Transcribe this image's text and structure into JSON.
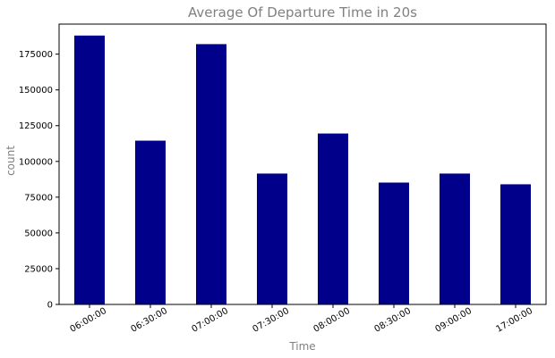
{
  "chart_data": {
    "type": "bar",
    "title": "Average Of Departure Time in 20s",
    "xlabel": "Time",
    "ylabel": "count",
    "categories": [
      "06:00:00",
      "06:30:00",
      "07:00:00",
      "07:30:00",
      "08:00:00",
      "08:30:00",
      "09:00:00",
      "17:00:00"
    ],
    "values": [
      188000,
      114500,
      182000,
      91500,
      119500,
      85200,
      91500,
      84000
    ],
    "ylim": [
      0,
      196000
    ],
    "yticks": [
      0,
      25000,
      50000,
      75000,
      100000,
      125000,
      150000,
      175000
    ],
    "ytick_labels": [
      "0",
      "25000",
      "50000",
      "75000",
      "100000",
      "125000",
      "150000",
      "175000"
    ],
    "grid": false,
    "colors": {
      "bar": "#00008B",
      "axis": "#000000",
      "label": "#808080"
    }
  }
}
